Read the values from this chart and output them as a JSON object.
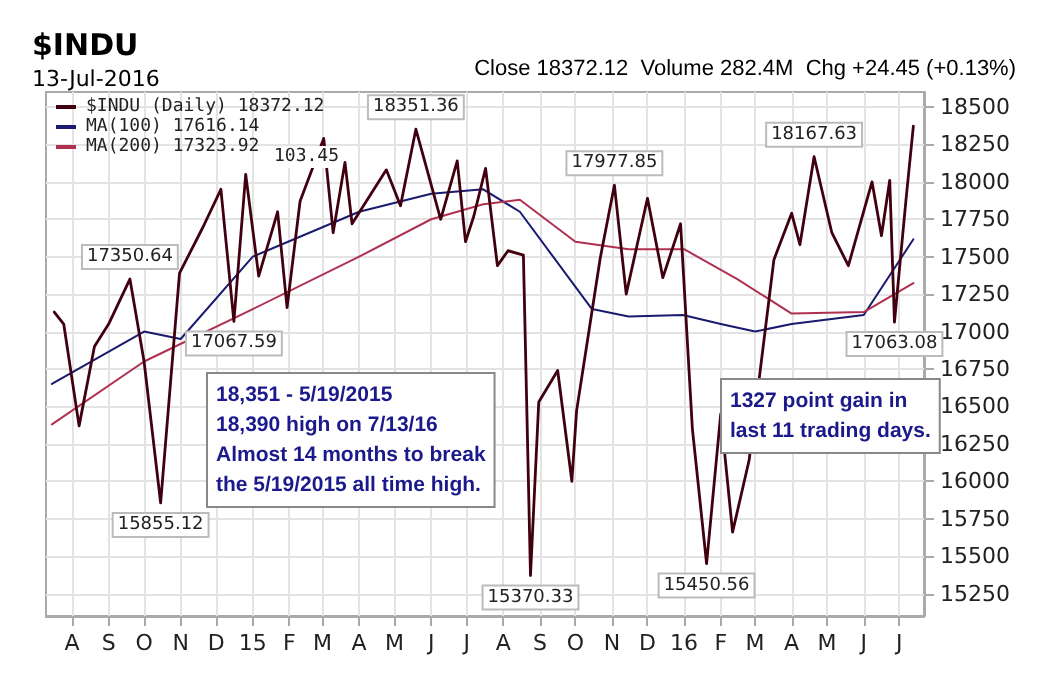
{
  "chart_data": {
    "type": "line",
    "title": "$INDU",
    "subtitle": "13-Jul-2016",
    "annotations": [
      "Close 18372.12  Volume 282.4M  Chg +24.45 (+0.13%)",
      "103.45",
      "18,351 - 5/19/2015\n18,390 high on 7/13/16\nAlmost 14 months to break\nthe 5/19/2015 all time high.",
      "1327 point gain in\nlast 11 trading days.",
      {
        "text": "17350.64",
        "x": "2014-09-19",
        "y": 17350.64
      },
      {
        "text": "15855.12",
        "x": "2014-10-15",
        "y": 15855.12
      },
      {
        "text": "17067.59",
        "x": "2014-12-16",
        "y": 17067.59
      },
      {
        "text": "18351.36",
        "x": "2015-05-19",
        "y": 18351.36
      },
      {
        "text": "15370.33",
        "x": "2015-08-24",
        "y": 15370.33
      },
      {
        "text": "17977.85",
        "x": "2015-11-03",
        "y": 17977.85
      },
      {
        "text": "15450.56",
        "x": "2016-01-20",
        "y": 15450.56
      },
      {
        "text": "18167.63",
        "x": "2016-04-20",
        "y": 18167.63
      },
      {
        "text": "17063.08",
        "x": "2016-06-27",
        "y": 17063.08
      }
    ],
    "series": [
      {
        "name": "$INDU (Daily) 18372.12",
        "color": "#400010",
        "x": [
          "2014-07-17",
          "2014-07-25",
          "2014-08-07",
          "2014-08-20",
          "2014-09-01",
          "2014-09-19",
          "2014-10-01",
          "2014-10-15",
          "2014-10-31",
          "2014-11-20",
          "2014-12-05",
          "2014-12-16",
          "2014-12-26",
          "2015-01-06",
          "2015-01-22",
          "2015-01-30",
          "2015-02-10",
          "2015-03-02",
          "2015-03-10",
          "2015-03-20",
          "2015-03-26",
          "2015-04-24",
          "2015-05-06",
          "2015-05-19",
          "2015-06-09",
          "2015-06-23",
          "2015-06-30",
          "2015-07-07",
          "2015-07-17",
          "2015-07-27",
          "2015-08-05",
          "2015-08-18",
          "2015-08-24",
          "2015-08-31",
          "2015-09-16",
          "2015-09-28",
          "2015-10-02",
          "2015-10-22",
          "2015-11-03",
          "2015-11-13",
          "2015-12-01",
          "2015-12-14",
          "2015-12-29",
          "2016-01-08",
          "2016-01-20",
          "2016-02-01",
          "2016-02-11",
          "2016-02-25",
          "2016-03-17",
          "2016-04-01",
          "2016-04-08",
          "2016-04-20",
          "2016-05-05",
          "2016-05-19",
          "2016-06-08",
          "2016-06-16",
          "2016-06-23",
          "2016-06-27",
          "2016-07-07",
          "2016-07-13"
        ],
        "values": [
          17130,
          17050,
          16370,
          16900,
          17050,
          17350.64,
          16800,
          15855.12,
          17390,
          17700,
          17950,
          17067.59,
          18050,
          17370,
          17800,
          17160,
          17870,
          18290,
          17660,
          18130,
          17720,
          18080,
          17840,
          18351.36,
          17750,
          18140,
          17600,
          17770,
          18090,
          17440,
          17540,
          17510,
          15370.33,
          16530,
          16740,
          16000,
          16470,
          17490,
          17977.85,
          17250,
          17890,
          17360,
          17720,
          16350,
          15450.56,
          16450,
          15660,
          16140,
          17480,
          17790,
          17580,
          18167.63,
          17660,
          17440,
          18000,
          17640,
          18010,
          17063.08,
          17900,
          18372.12
        ]
      },
      {
        "name": "MA(100) 17616.14",
        "color": "#1a1a6e",
        "x": [
          "2014-07-15",
          "2014-10-01",
          "2014-11-01",
          "2015-01-01",
          "2015-04-01",
          "2015-06-01",
          "2015-07-15",
          "2015-08-15",
          "2015-10-15",
          "2015-11-15",
          "2015-12-31",
          "2016-02-01",
          "2016-03-01",
          "2016-04-01",
          "2016-06-01",
          "2016-07-13"
        ],
        "values": [
          16650,
          17000,
          16950,
          17500,
          17800,
          17920,
          17950,
          17800,
          17150,
          17100,
          17110,
          17050,
          17000,
          17050,
          17110,
          17616.14
        ]
      },
      {
        "name": "MA(200) 17323.92",
        "color": "#b03050",
        "x": [
          "2014-07-15",
          "2014-10-01",
          "2015-01-01",
          "2015-04-01",
          "2015-06-01",
          "2015-07-15",
          "2015-08-15",
          "2015-10-01",
          "2015-11-15",
          "2016-01-01",
          "2016-02-15",
          "2016-04-01",
          "2016-06-01",
          "2016-07-13"
        ],
        "values": [
          16380,
          16800,
          17150,
          17500,
          17750,
          17850,
          17880,
          17600,
          17550,
          17550,
          17350,
          17120,
          17130,
          17323.92
        ]
      }
    ],
    "xlim": [
      "2014-07-10",
      "2016-07-22"
    ],
    "xticks": [
      {
        "value": "2014-08-01",
        "label": "A"
      },
      {
        "value": "2014-09-01",
        "label": "S"
      },
      {
        "value": "2014-10-01",
        "label": "O"
      },
      {
        "value": "2014-11-01",
        "label": "N"
      },
      {
        "value": "2014-12-01",
        "label": "D"
      },
      {
        "value": "2015-01-01",
        "label": "15"
      },
      {
        "value": "2015-02-01",
        "label": "F"
      },
      {
        "value": "2015-03-01",
        "label": "M"
      },
      {
        "value": "2015-04-01",
        "label": "A"
      },
      {
        "value": "2015-05-01",
        "label": "M"
      },
      {
        "value": "2015-06-01",
        "label": "J"
      },
      {
        "value": "2015-07-01",
        "label": "J"
      },
      {
        "value": "2015-08-01",
        "label": "A"
      },
      {
        "value": "2015-09-01",
        "label": "S"
      },
      {
        "value": "2015-10-01",
        "label": "O"
      },
      {
        "value": "2015-11-01",
        "label": "N"
      },
      {
        "value": "2015-12-01",
        "label": "D"
      },
      {
        "value": "2016-01-01",
        "label": "16"
      },
      {
        "value": "2016-02-01",
        "label": "F"
      },
      {
        "value": "2016-03-01",
        "label": "M"
      },
      {
        "value": "2016-04-01",
        "label": "A"
      },
      {
        "value": "2016-05-01",
        "label": "M"
      },
      {
        "value": "2016-06-01",
        "label": "J"
      },
      {
        "value": "2016-07-01",
        "label": "J"
      }
    ],
    "ylim": [
      15100,
      18600
    ],
    "yticks": [
      15250,
      15500,
      15750,
      16000,
      16250,
      16500,
      16750,
      17000,
      17250,
      17500,
      17750,
      18000,
      18250,
      18500
    ],
    "grid": true,
    "legend": "top left",
    "marker": "none",
    "line_style": "solid"
  }
}
